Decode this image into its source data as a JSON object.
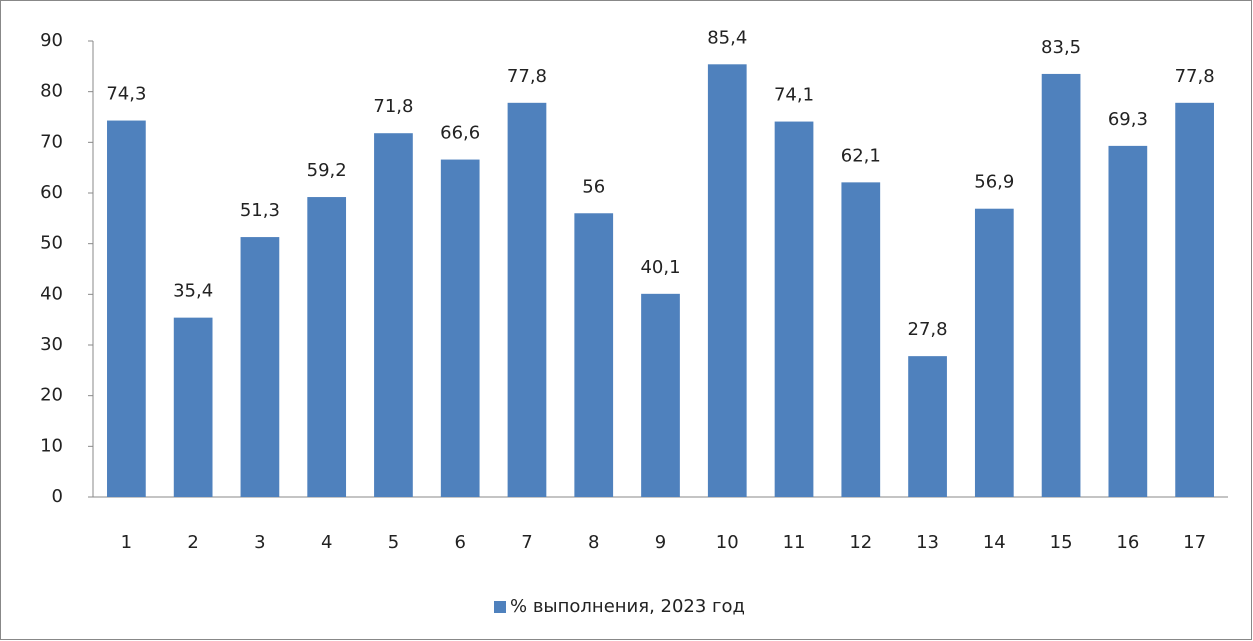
{
  "chart_data": {
    "type": "bar",
    "categories": [
      "1",
      "2",
      "3",
      "4",
      "5",
      "6",
      "7",
      "8",
      "9",
      "10",
      "11",
      "12",
      "13",
      "14",
      "15",
      "16",
      "17"
    ],
    "series": [
      {
        "name": "% выполнения, 2023 год",
        "color": "#4f81bd",
        "values": [
          74.3,
          35.4,
          51.3,
          59.2,
          71.8,
          66.6,
          77.8,
          56,
          40.1,
          85.4,
          74.1,
          62.1,
          27.8,
          56.9,
          83.5,
          69.3,
          77.8
        ],
        "value_labels": [
          "74,3",
          "35,4",
          "51,3",
          "59,2",
          "71,8",
          "66,6",
          "77,8",
          "56",
          "40,1",
          "85,4",
          "74,1",
          "62,1",
          "27,8",
          "56,9",
          "83,5",
          "69,3",
          "77,8"
        ]
      }
    ],
    "ylim": [
      0,
      90
    ],
    "yticks": [
      0,
      10,
      20,
      30,
      40,
      50,
      60,
      70,
      80,
      90
    ],
    "grid": false,
    "legend": "bottom"
  }
}
